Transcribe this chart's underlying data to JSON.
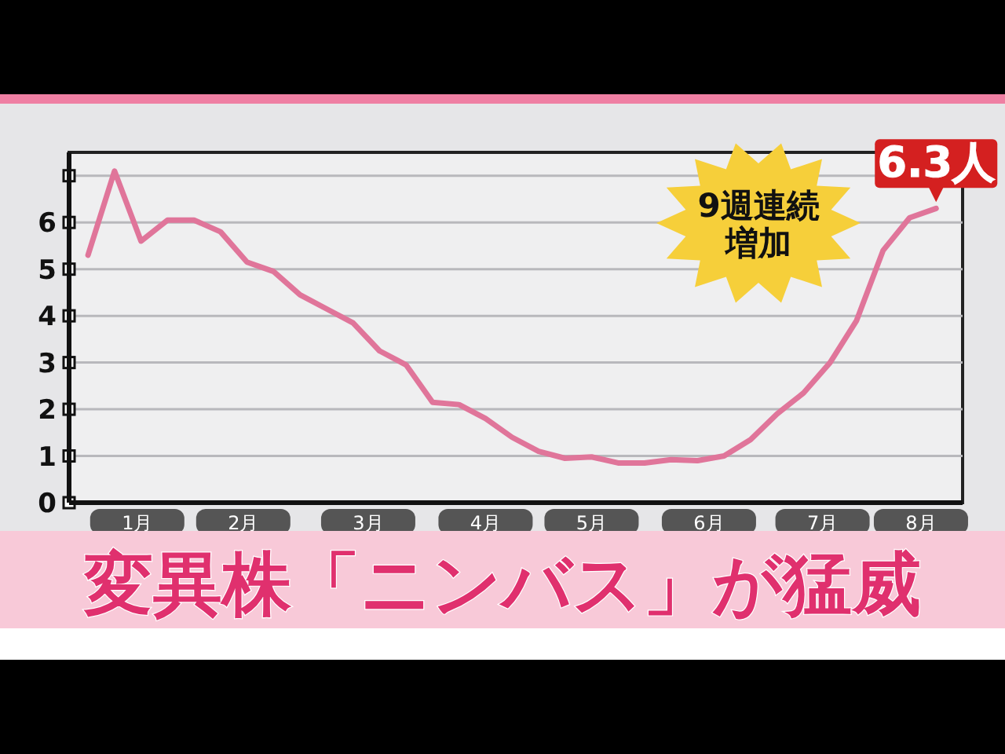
{
  "chart_data": {
    "type": "line",
    "title": "変異株「ニンバス」が猛威",
    "x": [
      "--01-06",
      "--01-13",
      "--01-20",
      "--01-27",
      "--02-03",
      "--02-10",
      "--02-17",
      "--02-24",
      "--03-03",
      "--03-10",
      "--03-17",
      "--03-24",
      "--03-31",
      "--04-07",
      "--04-14",
      "--04-21",
      "--04-28",
      "--05-05",
      "--05-12",
      "--05-19",
      "--05-26",
      "--06-02",
      "--06-09",
      "--06-16",
      "--06-23",
      "--06-30",
      "--07-07",
      "--07-14",
      "--07-21",
      "--07-28",
      "--08-04",
      "--08-11",
      "--08-18"
    ],
    "series": [
      {
        "color": "#e0759a",
        "values": [
          5.3,
          7.1,
          5.6,
          6.05,
          6.05,
          5.8,
          5.15,
          4.95,
          4.45,
          4.15,
          3.85,
          3.25,
          2.95,
          2.15,
          2.1,
          1.8,
          1.4,
          1.1,
          0.95,
          0.98,
          0.85,
          0.85,
          0.92,
          0.9,
          1.0,
          1.35,
          1.9,
          2.35,
          3.0,
          3.9,
          5.4,
          6.1,
          6.3
        ]
      }
    ],
    "xlim": [
      "--01-01",
      "--08-25"
    ],
    "xticks": [
      {
        "value": "--01-19",
        "label": "1月"
      },
      {
        "value": "--02-16",
        "label": "2月"
      },
      {
        "value": "--03-21",
        "label": "3月"
      },
      {
        "value": "--04-21",
        "label": "4月"
      },
      {
        "value": "--05-19",
        "label": "5月"
      },
      {
        "value": "--06-19",
        "label": "6月"
      },
      {
        "value": "--07-19",
        "label": "7月"
      },
      {
        "value": "--08-14",
        "label": "8月"
      }
    ],
    "ylim": [
      0,
      7.5
    ],
    "yticks": [
      0,
      1,
      2,
      3,
      4,
      5,
      6,
      {
        "value": 7,
        "label": null
      }
    ],
    "grid": "y",
    "marker": "none",
    "line_style": "solid",
    "annotations": [
      {
        "text": "6.3人",
        "x": "--08-18",
        "y": 6.3
      },
      "9週連続増加"
    ]
  }
}
